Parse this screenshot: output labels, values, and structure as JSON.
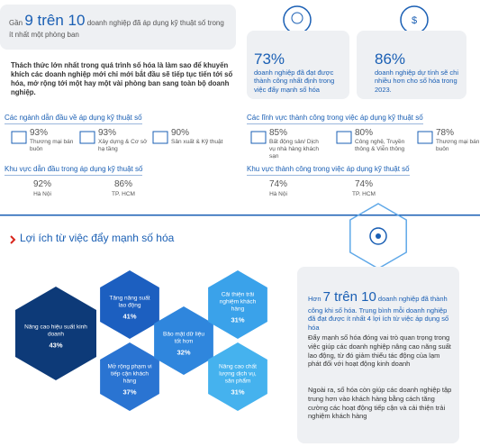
{
  "header": {
    "prefix": "Gần",
    "highlight": "9 trên 10",
    "text": "doanh nghiệp đã áp dụng kỹ thuật số trong ít nhất một phòng ban"
  },
  "stats": [
    {
      "value": "73%",
      "text": "doanh nghiệp đã đạt được thành công nhất định trong việc đẩy mạnh số hóa"
    },
    {
      "value": "86%",
      "text": "doanh nghiệp dự tính sẽ chi nhiều hơn cho số hóa trong 2023."
    }
  ],
  "challenge": "Thách thức lớn nhất trong quá trình số hóa là làm sao để khuyến khích các doanh nghiệp mới chỉ mới bắt đầu sẽ tiếp tục tiến tới số hóa, mở rộng tới một hay một vài phòng ban sang toàn bộ doanh nghiệp.",
  "sections": [
    {
      "title": "Các ngành dẫn đầu về áp dụng kỹ thuật số",
      "items": [
        {
          "value": "93%",
          "label": "Thương mại bán buôn"
        },
        {
          "value": "93%",
          "label": "Xây dựng & Cơ sở hạ tầng"
        },
        {
          "value": "90%",
          "label": "Sản xuất & Kỹ thuật"
        }
      ]
    },
    {
      "title": "Các lĩnh vực thành công trong việc áp dụng kỹ thuật số",
      "items": [
        {
          "value": "85%",
          "label": "Bất động sản/ Dịch vụ nhà hàng khách sạn"
        },
        {
          "value": "80%",
          "label": "Công nghệ, Truyền thông & Viễn thông"
        },
        {
          "value": "78%",
          "label": "Thương mại bán buôn"
        }
      ]
    },
    {
      "title": "Khu vực dẫn đầu trong áp dụng kỹ thuật số",
      "items": [
        {
          "value": "92%",
          "label": "Hà Nội"
        },
        {
          "value": "86%",
          "label": "TP. HCM"
        }
      ]
    },
    {
      "title": "Khu vực thành công trong việc áp dụng kỹ thuật số",
      "items": [
        {
          "value": "74%",
          "label": "Hà Nội"
        },
        {
          "value": "74%",
          "label": "TP. HCM"
        }
      ]
    }
  ],
  "benefits": {
    "title": "Lợi ích từ việc đẩy mạnh số hóa",
    "items": [
      {
        "label": "Nâng cao hiệu suất kinh doanh",
        "value": "43%"
      },
      {
        "label": "Tăng năng suất lao động",
        "value": "41%"
      },
      {
        "label": "Mở rộng phạm vi tiếp cận khách hàng",
        "value": "37%"
      },
      {
        "label": "Bảo mật dữ liệu tốt hơn",
        "value": "32%"
      },
      {
        "label": "Cải thiện trải nghiệm khách hàng",
        "value": "31%"
      },
      {
        "label": "Nâng cao chất lượng dịch vụ, sản phẩm",
        "value": "31%"
      }
    ],
    "summary": {
      "prefix": "Hơn",
      "highlight": "7 trên 10",
      "text": "doanh nghiệp đã thành công khi số hóa. Trung bình mỗi doanh nghiệp đã đạt được ít nhất 4 lợi ích từ việc áp dụng số hóa"
    },
    "paragraphs": [
      "Đẩy mạnh số hóa đóng vai trò quan trọng trong việc giúp các doanh nghiệp nâng cao năng suất lao động, từ đó giảm thiểu tác động của lạm phát đối với hoạt động kinh doanh",
      "Ngoài ra, số hóa còn giúp các doanh nghiệp tập trung hơn vào khách hàng bằng cách tăng cường các hoạt động tiếp cận và cải thiện trải nghiệm khách hàng"
    ]
  }
}
